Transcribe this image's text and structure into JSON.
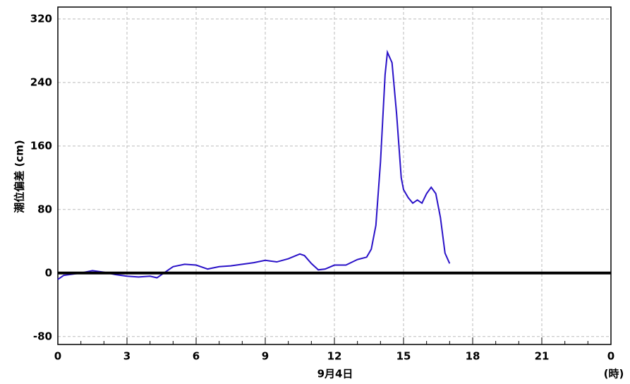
{
  "chart_data": {
    "type": "line",
    "y_label": "潮位偏差 (cm)",
    "x_label": "9月4日",
    "x_unit_label": "(時)",
    "xlim": [
      0,
      24
    ],
    "xticks": [
      0,
      3,
      6,
      9,
      12,
      15,
      18,
      21,
      {
        "value": 24,
        "label": "0"
      }
    ],
    "xminor_step": 1,
    "ylim": [
      -90,
      335
    ],
    "yticks": [
      {
        "value": -80,
        "label": "-80"
      },
      0,
      80,
      160,
      240,
      320
    ],
    "grid": true,
    "reference_line": {
      "value": 0,
      "color": "#000000"
    },
    "series": [
      {
        "color": "#2a12c8",
        "x": [
          0,
          0.25,
          0.5,
          1,
          1.5,
          2,
          2.5,
          3,
          3.5,
          4,
          4.3,
          4.6,
          5,
          5.5,
          6,
          6.5,
          7,
          7.5,
          8,
          8.5,
          9,
          9.5,
          10,
          10.5,
          10.7,
          11,
          11.3,
          11.6,
          12,
          12.5,
          13,
          13.4,
          13.6,
          13.8,
          14,
          14.2,
          14.3,
          14.5,
          14.7,
          14.9,
          15,
          15.2,
          15.4,
          15.6,
          15.8,
          16,
          16.2,
          16.4,
          16.6,
          16.8,
          17
        ],
        "values": [
          -8,
          -3,
          -2,
          0,
          3,
          1,
          -2,
          -4,
          -5,
          -4,
          -6,
          0,
          8,
          11,
          10,
          5,
          8,
          9,
          11,
          13,
          16,
          14,
          18,
          24,
          22,
          12,
          4,
          5,
          10,
          10,
          17,
          20,
          30,
          60,
          140,
          250,
          278,
          265,
          200,
          120,
          105,
          95,
          88,
          92,
          88,
          100,
          108,
          100,
          70,
          25,
          12
        ]
      }
    ]
  }
}
